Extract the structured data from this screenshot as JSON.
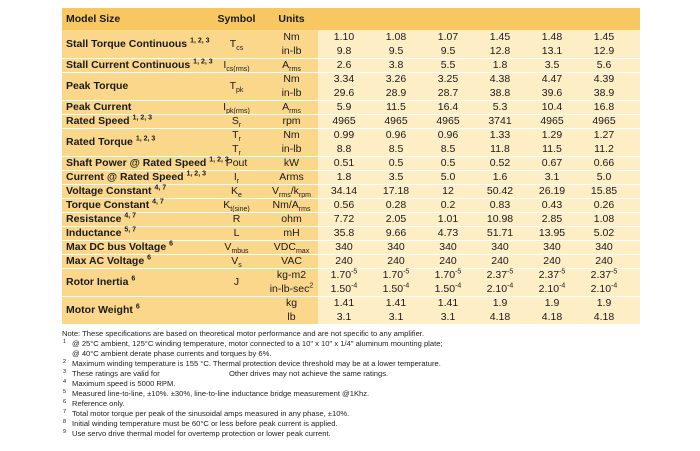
{
  "header": {
    "model_size": "Model Size",
    "symbol": "Symbol",
    "units": "Units"
  },
  "rows": [
    {
      "label": "Stall Torque Continuous",
      "sup": "1, 2, 3",
      "symbol": [
        {
          "text": "T"
        },
        {
          "sub": "cs"
        }
      ],
      "lines": [
        {
          "unit": "Nm",
          "values": [
            "1.10",
            "1.08",
            "1.07",
            "1.45",
            "1.48",
            "1.45"
          ]
        },
        {
          "unit": "in-lb",
          "values": [
            "9.8",
            "9.5",
            "9.5",
            "12.8",
            "13.1",
            "12.9"
          ]
        }
      ]
    },
    {
      "label": "Stall Current Continuous",
      "sup": "1, 2, 3",
      "symbol": [
        {
          "text": "I"
        },
        {
          "sub": "cs(rms)"
        }
      ],
      "lines": [
        {
          "unit": [
            {
              "text": "A"
            },
            {
              "sub": "rms"
            }
          ],
          "values": [
            "2.6",
            "3.8",
            "5.5",
            "1.8",
            "3.5",
            "5.6"
          ]
        }
      ]
    },
    {
      "label": "Peak Torque",
      "symbol": [
        {
          "text": "T"
        },
        {
          "sub": "pk"
        }
      ],
      "lines": [
        {
          "unit": "Nm",
          "values": [
            "3.34",
            "3.26",
            "3.25",
            "4.38",
            "4.47",
            "4.39"
          ]
        },
        {
          "unit": "in-lb",
          "values": [
            "29.6",
            "28.9",
            "28.7",
            "38.8",
            "39.6",
            "38.9"
          ]
        }
      ]
    },
    {
      "label": "Peak Current",
      "symbol": [
        {
          "text": "I"
        },
        {
          "sub": "pk(rms)"
        }
      ],
      "lines": [
        {
          "unit": [
            {
              "text": "A"
            },
            {
              "sub": "rms"
            }
          ],
          "values": [
            "5.9",
            "11.5",
            "16.4",
            "5.3",
            "10.4",
            "16.8"
          ]
        }
      ]
    },
    {
      "label": "Rated Speed",
      "sup": "1, 2, 3",
      "symbol": [
        {
          "text": "S"
        },
        {
          "sub": "r"
        }
      ],
      "lines": [
        {
          "unit": "rpm",
          "values": [
            "4965",
            "4965",
            "4965",
            "3741",
            "4965",
            "4965"
          ]
        }
      ]
    },
    {
      "label": "Rated Torque",
      "sup": "1, 2, 3",
      "lines": [
        {
          "symbol": [
            {
              "text": "T"
            },
            {
              "sub": "r"
            }
          ],
          "unit": "Nm",
          "values": [
            "0.99",
            "0.96",
            "0.96",
            "1.33",
            "1.29",
            "1.27"
          ]
        },
        {
          "symbol": [
            {
              "text": "T"
            },
            {
              "sub": "r"
            }
          ],
          "unit": "in-lb",
          "values": [
            "8.8",
            "8.5",
            "8.5",
            "11.8",
            "11.5",
            "11.2"
          ]
        }
      ]
    },
    {
      "label": "Shaft Power @ Rated Speed",
      "sup": "1, 2, 3",
      "symbol": "Pout",
      "lines": [
        {
          "unit": "kW",
          "values": [
            "0.51",
            "0.5",
            "0.5",
            "0.52",
            "0.67",
            "0.66"
          ]
        }
      ]
    },
    {
      "label": "Current @ Rated Speed",
      "sup": "1, 2, 3",
      "symbol": [
        {
          "text": "I"
        },
        {
          "sub": "r"
        }
      ],
      "lines": [
        {
          "unit": "Arms",
          "values": [
            "1.8",
            "3.5",
            "5.0",
            "1.6",
            "3.1",
            "5.0"
          ]
        }
      ]
    },
    {
      "label": "Voltage Constant",
      "sup": "4, 7",
      "symbol": [
        {
          "text": "K"
        },
        {
          "sub": "e"
        }
      ],
      "lines": [
        {
          "unit": [
            {
              "text": "V"
            },
            {
              "sub": "rms"
            },
            {
              "text": "/k"
            },
            {
              "sub": "rpm"
            }
          ],
          "values": [
            "34.14",
            "17.18",
            "12",
            "50.42",
            "26.19",
            "15.85"
          ]
        }
      ]
    },
    {
      "label": "Torque Constant",
      "sup": "4, 7",
      "symbol": [
        {
          "text": "K"
        },
        {
          "sub": "t(sine)"
        }
      ],
      "lines": [
        {
          "unit": [
            {
              "text": "Nm/A"
            },
            {
              "sub": "rms"
            }
          ],
          "values": [
            "0.56",
            "0.28",
            "0.2",
            "0.83",
            "0.43",
            "0.26"
          ]
        }
      ]
    },
    {
      "label": "Resistance",
      "sup": "4, 7",
      "symbol": "R",
      "lines": [
        {
          "unit": "ohm",
          "values": [
            "7.72",
            "2.05",
            "1.01",
            "10.98",
            "2.85",
            "1.08"
          ]
        }
      ]
    },
    {
      "label": "Inductance",
      "sup": "5, 7",
      "symbol": "L",
      "lines": [
        {
          "unit": "mH",
          "values": [
            "35.8",
            "9.66",
            "4.73",
            "51.71",
            "13.95",
            "5.02"
          ]
        }
      ]
    },
    {
      "label": "Max DC bus Voltage",
      "sup": "6",
      "symbol": [
        {
          "text": "V"
        },
        {
          "sub": "mbus"
        }
      ],
      "lines": [
        {
          "unit": [
            {
              "text": "VDC"
            },
            {
              "sub": "max"
            }
          ],
          "values": [
            "340",
            "340",
            "340",
            "340",
            "340",
            "340"
          ]
        }
      ]
    },
    {
      "label": "Max AC Voltage",
      "sup": "6",
      "symbol": [
        {
          "text": "V"
        },
        {
          "sub": "s"
        }
      ],
      "lines": [
        {
          "unit": "VAC",
          "values": [
            "240",
            "240",
            "240",
            "240",
            "240",
            "240"
          ]
        }
      ]
    },
    {
      "label": "Rotor Inertia",
      "sup": "6",
      "symbol": "J",
      "lines": [
        {
          "unit": "kg-m2",
          "values": [
            [
              {
                "text": "1.70"
              },
              {
                "sup": "-5"
              }
            ],
            [
              {
                "text": "1.70"
              },
              {
                "sup": "-5"
              }
            ],
            [
              {
                "text": "1.70"
              },
              {
                "sup": "-5"
              }
            ],
            [
              {
                "text": "2.37"
              },
              {
                "sup": "-5"
              }
            ],
            [
              {
                "text": "2.37"
              },
              {
                "sup": "-5"
              }
            ],
            [
              {
                "text": "2.37"
              },
              {
                "sup": "-5"
              }
            ]
          ]
        },
        {
          "unit": [
            {
              "text": "in-lb-sec"
            },
            {
              "sup": "2"
            }
          ],
          "values": [
            [
              {
                "text": "1.50"
              },
              {
                "sup": "-4"
              }
            ],
            [
              {
                "text": "1.50"
              },
              {
                "sup": "-4"
              }
            ],
            [
              {
                "text": "1.50"
              },
              {
                "sup": "-4"
              }
            ],
            [
              {
                "text": "2.10"
              },
              {
                "sup": "-4"
              }
            ],
            [
              {
                "text": "2.10"
              },
              {
                "sup": "-4"
              }
            ],
            [
              {
                "text": "2.10"
              },
              {
                "sup": "-4"
              }
            ]
          ]
        }
      ]
    },
    {
      "label": "Motor Weight",
      "sup": "6",
      "lines": [
        {
          "unit": "kg",
          "values": [
            "1.41",
            "1.41",
            "1.41",
            "1.9",
            "1.9",
            "1.9"
          ]
        },
        {
          "unit": "lb",
          "values": [
            "3.1",
            "3.1",
            "3.1",
            "4.18",
            "4.18",
            "4.18"
          ]
        }
      ]
    }
  ],
  "notes": {
    "intro": "Note: These specifications are based on theoretical motor performance and are not specific to any amplifier.",
    "items": [
      {
        "mark": "1",
        "lines": [
          "@ 25°C ambient, 125°C winding temperature, motor connected to a 10\" x 10\" x 1/4\" aluminum mounting plate;",
          "@ 40°C ambient derate phase currents and torques by 6%."
        ]
      },
      {
        "mark": "2",
        "lines": [
          "Maximum winding temperature is 155 °C. Thermal protection device threshold may be at a lower temperature."
        ]
      },
      {
        "mark": "3",
        "lines": [
          [
            "These ratings are valid for",
            "Other drives may not achieve the same ratings."
          ]
        ]
      },
      {
        "mark": "4",
        "lines": [
          "Maximum speed is 5000 RPM."
        ]
      },
      {
        "mark": "5",
        "lines": [
          "Measured line-to-line, ±10%. ±30%, line-to-line inductance bridge measurement @1Khz."
        ]
      },
      {
        "mark": "6",
        "lines": [
          "Reference only."
        ]
      },
      {
        "mark": "7",
        "lines": [
          "Total motor torque per peak of the sinusoidal amps measured in any phase, ±10%."
        ]
      },
      {
        "mark": "8",
        "lines": [
          "Initial winding temperature must be 60°C or less before peak current is applied."
        ]
      },
      {
        "mark": "9",
        "lines": [
          "Use servo drive thermal model for overtemp protection or lower peak current."
        ]
      }
    ]
  }
}
